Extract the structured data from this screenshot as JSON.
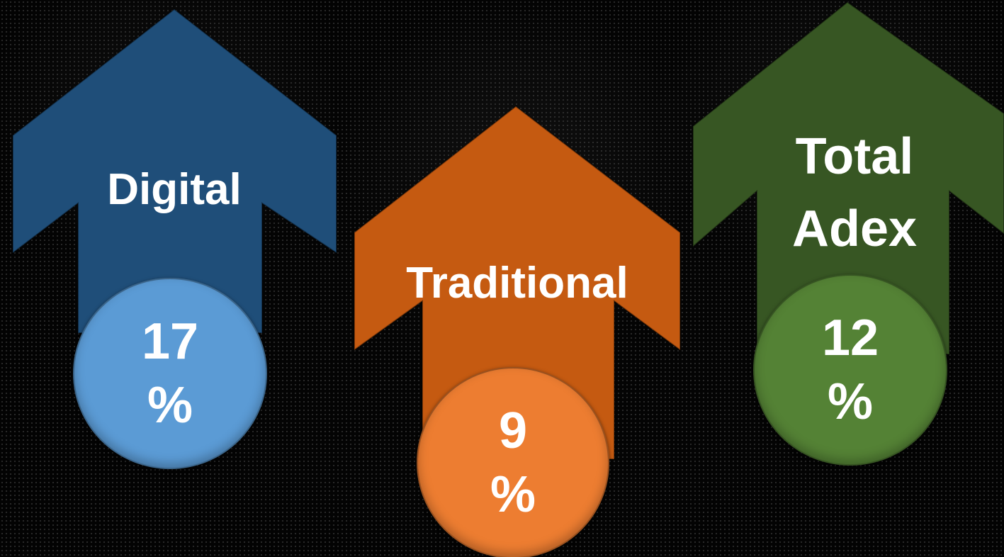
{
  "items": [
    {
      "label": "Digital",
      "value": "17 %",
      "arrow_color": "#1f4e79",
      "circle_color": "#5b9bd5"
    },
    {
      "label": "Traditional",
      "value": "9 %",
      "arrow_color": "#c55a11",
      "circle_color": "#ed7d31"
    },
    {
      "label": "Total Adex",
      "value": "12 %",
      "arrow_color": "#375623",
      "circle_color": "#548235"
    }
  ]
}
